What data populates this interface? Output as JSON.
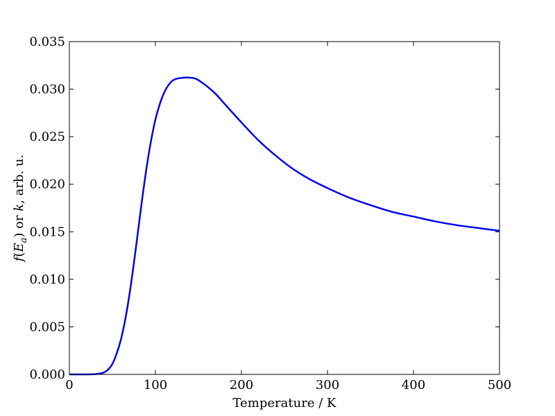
{
  "chart_data": {
    "type": "line",
    "xlabel": "Temperature / K",
    "ylabel": {
      "f": "f",
      "open": "(",
      "E": "E",
      "sub": "a",
      "close": ")",
      "or": " or ",
      "k": "k",
      "rest": ", arb. u."
    },
    "xlim": [
      0,
      500
    ],
    "ylim": [
      0,
      0.035
    ],
    "x_ticks": [
      0,
      100,
      200,
      300,
      400,
      500
    ],
    "x_tick_labels": [
      "0",
      "100",
      "200",
      "300",
      "400",
      "500"
    ],
    "y_ticks": [
      0,
      0.005,
      0.01,
      0.015,
      0.02,
      0.025,
      0.03,
      0.035
    ],
    "y_tick_labels": [
      "0.000",
      "0.005",
      "0.010",
      "0.015",
      "0.020",
      "0.025",
      "0.030",
      "0.035"
    ],
    "grid": false,
    "series": [
      {
        "color": "#0000ee",
        "x": [
          0,
          20,
          30,
          35,
          40,
          45,
          50,
          55,
          60,
          65,
          70,
          75,
          80,
          85,
          90,
          95,
          100,
          105,
          110,
          115,
          120,
          125,
          130,
          135,
          138,
          145,
          150,
          160,
          170,
          180,
          200,
          220,
          240,
          260,
          280,
          300,
          325,
          350,
          375,
          400,
          425,
          450,
          475,
          500
        ],
        "y": [
          0,
          0,
          3e-05,
          8e-05,
          0.0002,
          0.0005,
          0.0011,
          0.0022,
          0.0037,
          0.0058,
          0.0085,
          0.0117,
          0.0152,
          0.0187,
          0.0219,
          0.0246,
          0.0268,
          0.0284,
          0.0296,
          0.0304,
          0.0309,
          0.0311,
          0.03118,
          0.03122,
          0.03122,
          0.03115,
          0.03095,
          0.0303,
          0.0295,
          0.0285,
          0.0265,
          0.0246,
          0.023,
          0.0216,
          0.0205,
          0.0196,
          0.0186,
          0.0178,
          0.0171,
          0.0166,
          0.0161,
          0.0157,
          0.0154,
          0.0151
        ]
      }
    ]
  }
}
